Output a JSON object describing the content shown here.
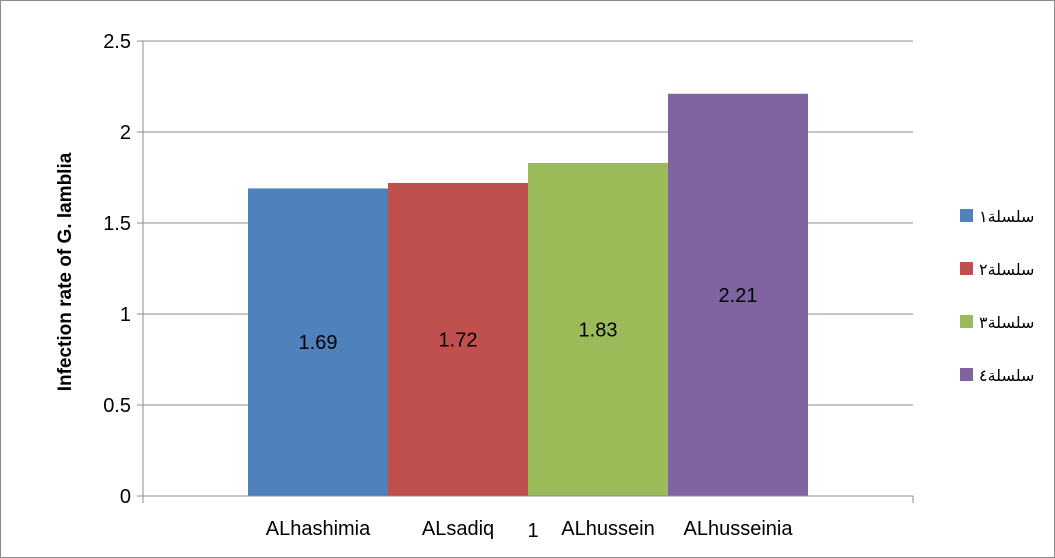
{
  "chart_data": {
    "type": "bar",
    "title": "",
    "xlabel": "",
    "ylabel": "Infection rate of G. lamblia",
    "ylim": [
      0,
      2.5
    ],
    "yticks": [
      0,
      0.5,
      1,
      1.5,
      2,
      2.5
    ],
    "ytick_labels": [
      "0",
      "0.5",
      "1",
      "1.5",
      "2",
      "2.5"
    ],
    "grid": true,
    "legend_position": "right",
    "category_axis_label": "1",
    "series": [
      {
        "name": "سلسلة١",
        "category": "ALhashimia",
        "value": 1.69,
        "label": "1.69",
        "color": "#4f81bd"
      },
      {
        "name": "سلسلة٢",
        "category": "ALsadiq",
        "value": 1.72,
        "label": "1.72",
        "color": "#c0504d"
      },
      {
        "name": "سلسلة٣",
        "category": "ALhussein",
        "value": 1.83,
        "label": "1.83",
        "color": "#9bbb59"
      },
      {
        "name": "سلسلة٤",
        "category": "ALhusseinia",
        "value": 2.21,
        "label": "2.21",
        "color": "#8064a2"
      }
    ]
  }
}
